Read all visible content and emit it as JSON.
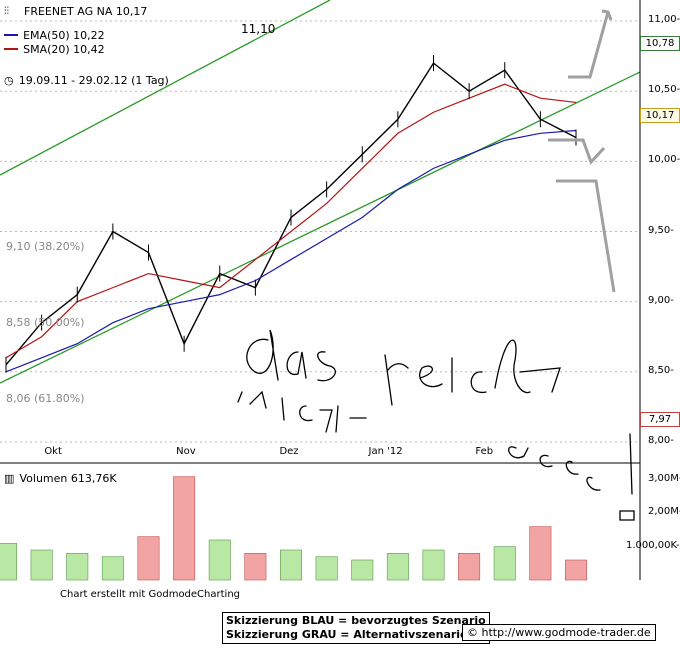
{
  "header": {
    "title": "FREENET AG NA 10,17",
    "ema_label": "EMA(50) 10,22",
    "sma_label": "SMA(20) 10,42",
    "date_range": "19.09.11 - 29.02.12 (1 Tag)"
  },
  "colors": {
    "ema": "#1a1aa8",
    "sma": "#b31414",
    "channel": "#2a9a2a",
    "projection": "#a0a0a0",
    "vol_up": "#b9e8a5",
    "vol_down": "#f2a3a3",
    "grid": "#bbbbbb",
    "label_up": "#3a7a3a",
    "label_down": "#c04040"
  },
  "annotations": {
    "top_mark": "11,10",
    "fib_382": "9,10 (38.20%)",
    "fib_500": "8,58 (50.00%)",
    "fib_618": "8,06 (61.80%)",
    "handwriting": "das reicht NICHT aus!"
  },
  "price_axis": {
    "ticks": [
      "11,00-",
      "10,50-",
      "10,00-",
      "9,50-",
      "9,00-",
      "8,50-",
      "8,00-"
    ],
    "marker_high": "10,78",
    "marker_last": "10,17",
    "marker_low": "7,97"
  },
  "time_axis": {
    "labels": [
      "Okt",
      "Nov",
      "Dez",
      "Jan '12",
      "Feb"
    ]
  },
  "volume": {
    "label": "Volumen 613,76K",
    "ticks": [
      "3,00M-",
      "2,00M-",
      "1.000,00K-"
    ]
  },
  "footer": {
    "credit": "Chart erstellt mit GodmodeCharting",
    "legend_blue": "Skizzierung BLAU = bevorzugtes Szenario",
    "legend_grey": "Skizzierung GRAU = Alternativszenario",
    "website": "© http://www.godmode-trader.de"
  },
  "chart_data": {
    "type": "line",
    "title": "FREENET AG NA 10,17",
    "x": [
      "19.09.11",
      "29.09.11",
      "10.10.11",
      "20.10.11",
      "31.10.11",
      "07.11.11",
      "18.11.11",
      "30.11.11",
      "12.12.11",
      "23.12.11",
      "06.01.12",
      "17.01.12",
      "27.01.12",
      "06.02.12",
      "16.02.12",
      "24.02.12",
      "29.02.12"
    ],
    "series": [
      {
        "name": "FREENET AG NA",
        "values": [
          8.55,
          8.85,
          9.05,
          9.5,
          9.35,
          8.7,
          9.2,
          9.1,
          9.6,
          9.8,
          10.05,
          10.3,
          10.7,
          10.5,
          10.65,
          10.3,
          10.17
        ]
      },
      {
        "name": "EMA(50)",
        "values": [
          8.5,
          8.6,
          8.7,
          8.85,
          8.95,
          9.0,
          9.05,
          9.15,
          9.3,
          9.45,
          9.6,
          9.8,
          9.95,
          10.05,
          10.15,
          10.2,
          10.22
        ]
      },
      {
        "name": "SMA(20)",
        "values": [
          8.6,
          8.75,
          9.0,
          9.1,
          9.2,
          9.15,
          9.1,
          9.3,
          9.5,
          9.7,
          9.95,
          10.2,
          10.35,
          10.45,
          10.55,
          10.45,
          10.42
        ]
      }
    ],
    "volume": [
      1.1,
      0.9,
      0.8,
      0.7,
      1.3,
      3.1,
      1.2,
      0.8,
      0.9,
      0.7,
      0.6,
      0.8,
      0.9,
      0.8,
      1.0,
      1.6,
      0.6
    ],
    "ylim": [
      7.85,
      11.15
    ],
    "volume_ylim": [
      0,
      3.3
    ]
  }
}
